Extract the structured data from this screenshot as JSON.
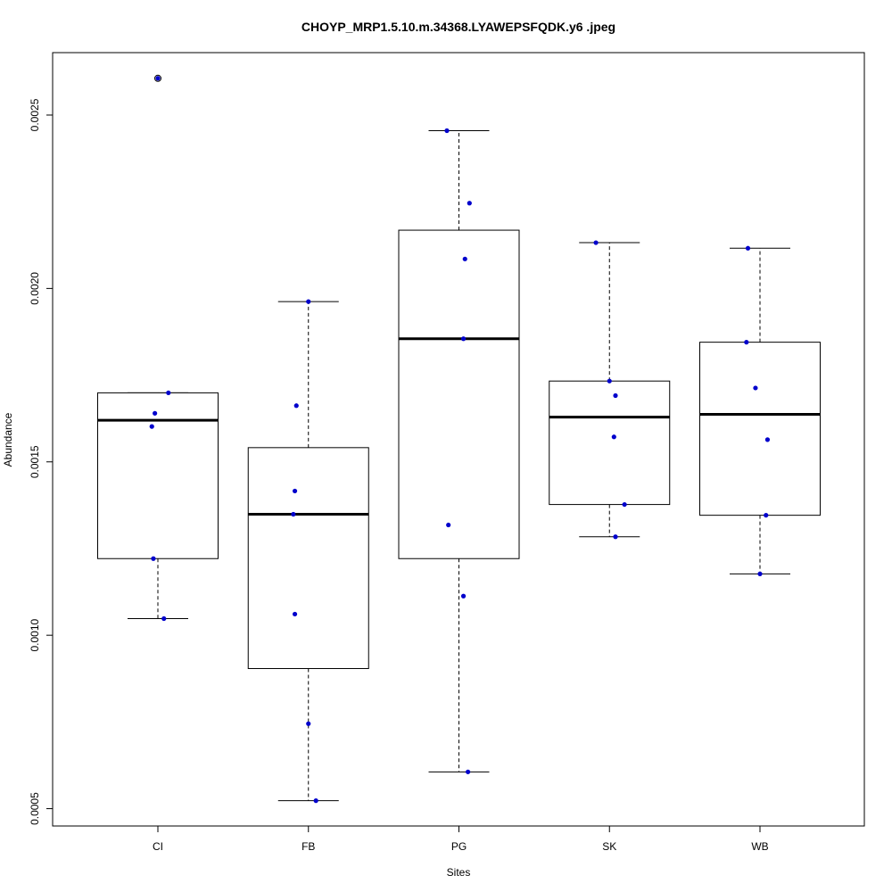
{
  "chart_data": {
    "type": "boxplot",
    "title": "CHOYP_MRP1.5.10.m.34368.LYAWEPSFQDK.y6 .jpeg",
    "xlabel": "Sites",
    "ylabel": "Abundance",
    "ylim": [
      0.00045,
      0.00268
    ],
    "yticks": [
      {
        "value": 0.0005,
        "label": "0.0005"
      },
      {
        "value": 0.001,
        "label": "0.0010"
      },
      {
        "value": 0.0015,
        "label": "0.0015"
      },
      {
        "value": 0.002,
        "label": "0.0020"
      },
      {
        "value": 0.0025,
        "label": "0.0025"
      }
    ],
    "grid": false,
    "colors": {
      "points": "#0000cc",
      "box": "#000000",
      "background": "#ffffff"
    },
    "categories": [
      "CI",
      "FB",
      "PG",
      "SK",
      "WB"
    ],
    "boxes": [
      {
        "name": "CI",
        "whisker_low": 0.001048,
        "q1": 0.001221,
        "median": 0.00162,
        "q3": 0.001699,
        "whisker_high": 0.001699,
        "outliers": [
          0.002606
        ]
      },
      {
        "name": "FB",
        "whisker_low": 0.000523,
        "q1": 0.000904,
        "median": 0.001349,
        "q3": 0.001541,
        "whisker_high": 0.001962,
        "outliers": []
      },
      {
        "name": "PG",
        "whisker_low": 0.000606,
        "q1": 0.001221,
        "median": 0.001855,
        "q3": 0.002168,
        "whisker_high": 0.002455,
        "outliers": []
      },
      {
        "name": "SK",
        "whisker_low": 0.001284,
        "q1": 0.001377,
        "median": 0.001629,
        "q3": 0.001733,
        "whisker_high": 0.002132,
        "outliers": []
      },
      {
        "name": "WB",
        "whisker_low": 0.001177,
        "q1": 0.001346,
        "median": 0.001637,
        "q3": 0.001845,
        "whisker_high": 0.002116,
        "outliers": []
      }
    ],
    "points": [
      {
        "category": "CI",
        "jitter": 0.0,
        "value": 0.002606
      },
      {
        "category": "CI",
        "jitter": 0.07,
        "value": 0.001699
      },
      {
        "category": "CI",
        "jitter": -0.02,
        "value": 0.00164
      },
      {
        "category": "CI",
        "jitter": -0.04,
        "value": 0.001602
      },
      {
        "category": "CI",
        "jitter": -0.03,
        "value": 0.001221
      },
      {
        "category": "CI",
        "jitter": 0.04,
        "value": 0.001048
      },
      {
        "category": "FB",
        "jitter": 0.0,
        "value": 0.001962
      },
      {
        "category": "FB",
        "jitter": -0.08,
        "value": 0.001662
      },
      {
        "category": "FB",
        "jitter": -0.09,
        "value": 0.001416
      },
      {
        "category": "FB",
        "jitter": -0.1,
        "value": 0.001349
      },
      {
        "category": "FB",
        "jitter": -0.09,
        "value": 0.001061
      },
      {
        "category": "FB",
        "jitter": 0.0,
        "value": 0.000745
      },
      {
        "category": "FB",
        "jitter": 0.05,
        "value": 0.000523
      },
      {
        "category": "PG",
        "jitter": -0.08,
        "value": 0.002455
      },
      {
        "category": "PG",
        "jitter": 0.07,
        "value": 0.002246
      },
      {
        "category": "PG",
        "jitter": 0.04,
        "value": 0.002085
      },
      {
        "category": "PG",
        "jitter": 0.03,
        "value": 0.001855
      },
      {
        "category": "PG",
        "jitter": -0.07,
        "value": 0.001318
      },
      {
        "category": "PG",
        "jitter": 0.03,
        "value": 0.001113
      },
      {
        "category": "PG",
        "jitter": 0.06,
        "value": 0.000606
      },
      {
        "category": "SK",
        "jitter": -0.09,
        "value": 0.002132
      },
      {
        "category": "SK",
        "jitter": 0.0,
        "value": 0.001733
      },
      {
        "category": "SK",
        "jitter": 0.04,
        "value": 0.001691
      },
      {
        "category": "SK",
        "jitter": 0.03,
        "value": 0.001572
      },
      {
        "category": "SK",
        "jitter": 0.1,
        "value": 0.001377
      },
      {
        "category": "SK",
        "jitter": 0.04,
        "value": 0.001284
      },
      {
        "category": "WB",
        "jitter": -0.08,
        "value": 0.002116
      },
      {
        "category": "WB",
        "jitter": -0.09,
        "value": 0.001845
      },
      {
        "category": "WB",
        "jitter": -0.03,
        "value": 0.001713
      },
      {
        "category": "WB",
        "jitter": 0.05,
        "value": 0.001564
      },
      {
        "category": "WB",
        "jitter": 0.04,
        "value": 0.001346
      },
      {
        "category": "WB",
        "jitter": 0.0,
        "value": 0.001177
      }
    ]
  }
}
